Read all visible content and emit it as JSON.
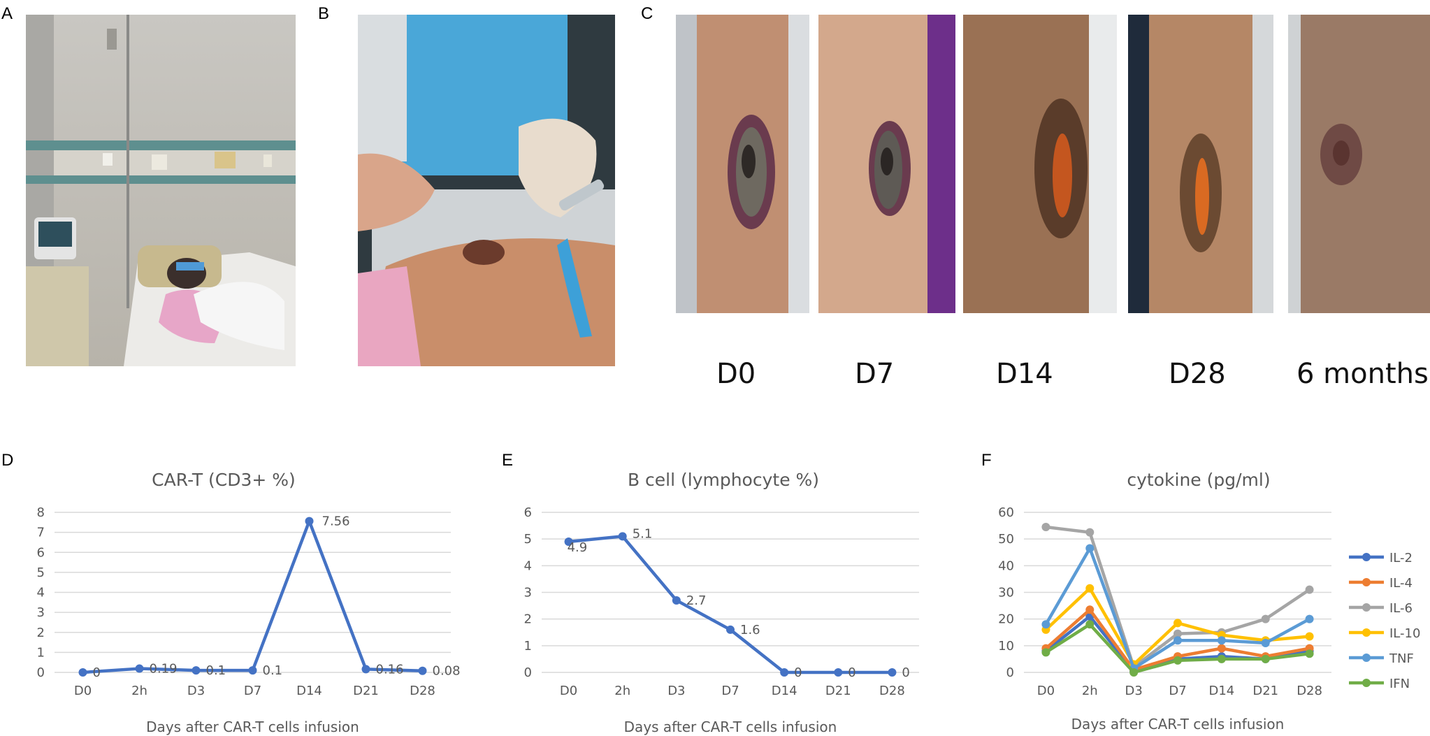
{
  "panel_labels": [
    "A",
    "B",
    "C",
    "D",
    "E",
    "F"
  ],
  "photo_c_labels": [
    "D0",
    "D7",
    "D14",
    "D28",
    "6 months"
  ],
  "colors": {
    "series_blue": "#4472C4",
    "il2": "#4472C4",
    "il4": "#ED7D31",
    "il6": "#A5A5A5",
    "il10": "#FFC000",
    "tnf": "#5B9BD5",
    "ifn": "#70AD47",
    "grid": "#d9d9d9",
    "axis_text": "#595959"
  },
  "chart_data": [
    {
      "type": "line",
      "title": "CAR-T (CD3+ %)",
      "xlabel": "Days after CAR-T cells infusion",
      "ylabel": "",
      "categories": [
        "D0",
        "2h",
        "D3",
        "D7",
        "D14",
        "D21",
        "D28"
      ],
      "ylim": [
        0,
        8
      ],
      "yticks": [
        "0",
        "1",
        "2",
        "3",
        "4",
        "5",
        "6",
        "7",
        "8"
      ],
      "grid": true,
      "series": [
        {
          "values": [
            0,
            0.19,
            0.1,
            0.1,
            7.56,
            0.16,
            0.08
          ],
          "labels": [
            "0",
            "0.19",
            "0.1",
            "0.1",
            "7.56",
            "0.16",
            "0.08"
          ]
        }
      ]
    },
    {
      "type": "line",
      "title": "B cell (lymphocyte %)",
      "xlabel": "Days after CAR-T cells infusion",
      "ylabel": "",
      "categories": [
        "D0",
        "2h",
        "D3",
        "D7",
        "D14",
        "D21",
        "D28"
      ],
      "ylim": [
        0,
        6
      ],
      "yticks": [
        "0",
        "1",
        "2",
        "3",
        "4",
        "5",
        "6"
      ],
      "grid": true,
      "series": [
        {
          "values": [
            4.9,
            5.1,
            2.7,
            1.6,
            0,
            0,
            0
          ],
          "labels": [
            "4.9",
            "5.1",
            "2.7",
            "1.6",
            "0",
            "0",
            "0"
          ]
        }
      ]
    },
    {
      "type": "line",
      "title": "cytokine (pg/ml)",
      "xlabel": "Days after CAR-T cells infusion",
      "ylabel": "",
      "categories": [
        "D0",
        "2h",
        "D3",
        "D7",
        "D14",
        "D21",
        "D28"
      ],
      "ylim": [
        0,
        60
      ],
      "yticks": [
        "0",
        "10",
        "20",
        "30",
        "40",
        "50",
        "60"
      ],
      "grid": true,
      "legend_position": "right",
      "series": [
        {
          "name": "IL-2",
          "values": [
            8,
            21,
            0.5,
            5,
            6,
            5,
            8
          ]
        },
        {
          "name": "IL-4",
          "values": [
            9,
            23.5,
            1,
            6,
            9,
            6,
            9
          ]
        },
        {
          "name": "IL-6",
          "values": [
            54.5,
            52.5,
            2,
            14.5,
            15,
            20,
            31
          ]
        },
        {
          "name": "IL-10",
          "values": [
            16,
            31.5,
            3,
            18.5,
            14,
            12,
            13.5
          ]
        },
        {
          "name": "TNF",
          "values": [
            18,
            46.5,
            1.5,
            12,
            12,
            11,
            20
          ]
        },
        {
          "name": "IFN",
          "values": [
            7.5,
            18,
            0,
            4.5,
            5,
            5,
            7
          ]
        }
      ]
    }
  ]
}
